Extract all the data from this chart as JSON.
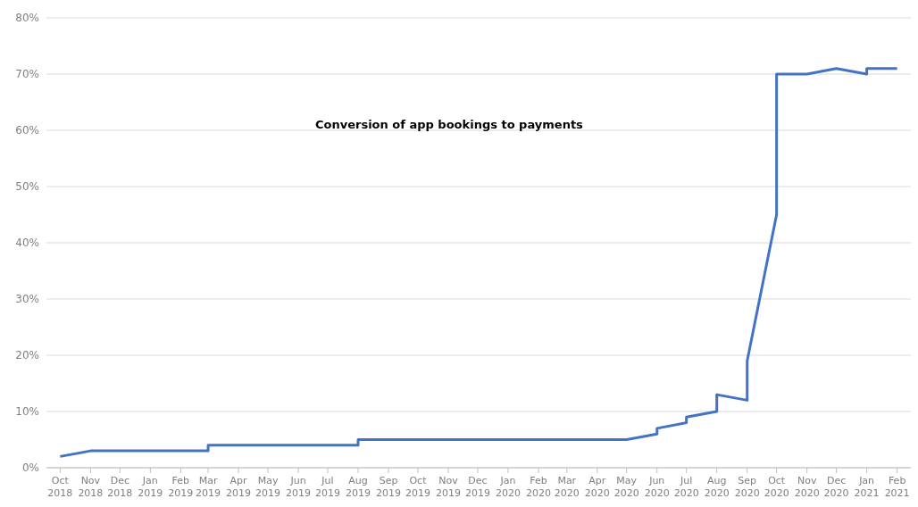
{
  "chart_data": {
    "type": "line",
    "title": "Conversion of app bookings to payments",
    "x": [
      "2018-10-15",
      "2018-11-15",
      "2019-03-15",
      "2019-03-15",
      "2019-08-15",
      "2019-08-15",
      "2020-05-15",
      "2020-06-15",
      "2020-06-15",
      "2020-07-15",
      "2020-07-15",
      "2020-08-15",
      "2020-08-15",
      "2020-09-15",
      "2020-09-15",
      "2020-10-15",
      "2020-10-15",
      "2020-11-15",
      "2020-12-15",
      "2021-01-15",
      "2021-01-15",
      "2021-02-15"
    ],
    "series": [
      {
        "color": "#4472c4",
        "values": [
          2,
          3,
          3,
          4,
          4,
          5,
          5,
          6,
          7,
          8,
          9,
          10,
          13,
          12,
          19,
          45,
          70,
          70,
          71,
          70,
          71,
          71
        ]
      }
    ],
    "xlim": [
      "2018-10-01",
      "2021-03-01"
    ],
    "xticks": [
      {
        "value": "2018-10-15",
        "label": "Oct 2018"
      },
      {
        "value": "2018-11-15",
        "label": "Nov 2018"
      },
      {
        "value": "2018-12-15",
        "label": "Dec 2018"
      },
      {
        "value": "2019-01-15",
        "label": "Jan 2019"
      },
      {
        "value": "2019-02-15",
        "label": "Feb 2019"
      },
      {
        "value": "2019-03-15",
        "label": "Mar 2019"
      },
      {
        "value": "2019-04-15",
        "label": "Apr 2019"
      },
      {
        "value": "2019-05-15",
        "label": "May 2019"
      },
      {
        "value": "2019-06-15",
        "label": "Jun 2019"
      },
      {
        "value": "2019-07-15",
        "label": "Jul 2019"
      },
      {
        "value": "2019-08-15",
        "label": "Aug 2019"
      },
      {
        "value": "2019-09-15",
        "label": "Sep 2019"
      },
      {
        "value": "2019-10-15",
        "label": "Oct 2019"
      },
      {
        "value": "2019-11-15",
        "label": "Nov 2019"
      },
      {
        "value": "2019-12-15",
        "label": "Dec 2019"
      },
      {
        "value": "2020-01-15",
        "label": "Jan 2020"
      },
      {
        "value": "2020-02-15",
        "label": "Feb 2020"
      },
      {
        "value": "2020-03-15",
        "label": "Mar 2020"
      },
      {
        "value": "2020-04-15",
        "label": "Apr 2020"
      },
      {
        "value": "2020-05-15",
        "label": "May 2020"
      },
      {
        "value": "2020-06-15",
        "label": "Jun 2020"
      },
      {
        "value": "2020-07-15",
        "label": "Jul 2020"
      },
      {
        "value": "2020-08-15",
        "label": "Aug 2020"
      },
      {
        "value": "2020-09-15",
        "label": "Sep 2020"
      },
      {
        "value": "2020-10-15",
        "label": "Oct 2020"
      },
      {
        "value": "2020-11-15",
        "label": "Nov 2020"
      },
      {
        "value": "2020-12-15",
        "label": "Dec 2020"
      },
      {
        "value": "2021-01-15",
        "label": "Jan 2021"
      },
      {
        "value": "2021-02-15",
        "label": "Feb 2021"
      }
    ],
    "ylim": [
      0,
      80
    ],
    "yticks": [
      {
        "value": 0,
        "label": "0%"
      },
      {
        "value": 10,
        "label": "10%"
      },
      {
        "value": 20,
        "label": "20%"
      },
      {
        "value": 30,
        "label": "30%"
      },
      {
        "value": 40,
        "label": "40%"
      },
      {
        "value": 50,
        "label": "50%"
      },
      {
        "value": 60,
        "label": "60%"
      },
      {
        "value": 70,
        "label": "70%"
      },
      {
        "value": 80,
        "label": "80%"
      }
    ],
    "grid": "y",
    "marker": "none",
    "line_style": "solid"
  }
}
